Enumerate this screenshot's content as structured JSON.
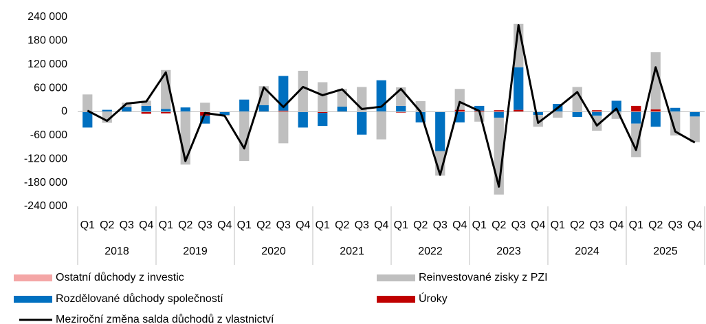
{
  "chart_data": {
    "type": "stacked_bar_line",
    "categories": [
      "Q1",
      "Q2",
      "Q3",
      "Q4",
      "Q1",
      "Q2",
      "Q3",
      "Q4",
      "Q1",
      "Q2",
      "Q3",
      "Q4",
      "Q1",
      "Q2",
      "Q3",
      "Q4",
      "Q1",
      "Q2",
      "Q3",
      "Q4",
      "Q1",
      "Q2",
      "Q3",
      "Q4",
      "Q1",
      "Q2",
      "Q3",
      "Q4",
      "Q1",
      "Q2",
      "Q3",
      "Q4"
    ],
    "groups": [
      "2018",
      "2019",
      "2020",
      "2021",
      "2022",
      "2023",
      "2024",
      "2025"
    ],
    "ylim": [
      -240000,
      240000
    ],
    "yticks": [
      {
        "value": -240000,
        "label": "-240 000"
      },
      {
        "value": -180000,
        "label": "-180 000"
      },
      {
        "value": -120000,
        "label": "-120 000"
      },
      {
        "value": -60000,
        "label": "-60 000"
      },
      0,
      {
        "value": 60000,
        "label": "60 000"
      },
      {
        "value": 120000,
        "label": "120 000"
      },
      {
        "value": 180000,
        "label": "180 000"
      },
      {
        "value": 240000,
        "label": "240 000"
      }
    ],
    "series": [
      {
        "name": "Ostatní důchody z investic",
        "color": "#f4a6a6",
        "kind": "bar",
        "values": [
          0,
          0,
          0,
          0,
          0,
          0,
          0,
          0,
          0,
          0,
          0,
          0,
          0,
          0,
          0,
          0,
          0,
          0,
          0,
          0,
          0,
          0,
          0,
          0,
          0,
          0,
          0,
          0,
          0,
          0,
          0,
          0
        ]
      },
      {
        "name": "Reinvestované zisky z PZI",
        "color": "#bfbfbf",
        "kind": "bar",
        "values": [
          44000,
          -28000,
          11000,
          13000,
          99000,
          -134000,
          23000,
          -3000,
          -125000,
          48000,
          -80000,
          104000,
          75000,
          45000,
          63000,
          -70000,
          47000,
          27000,
          -62000,
          53000,
          -25000,
          -195000,
          110000,
          -30000,
          -15000,
          63000,
          -38000,
          -18000,
          -85000,
          145000,
          -60000,
          -65000
        ]
      },
      {
        "name": "Rozdělované důchody společností",
        "color": "#0070c0",
        "kind": "bar",
        "values": [
          -40000,
          5000,
          12000,
          15000,
          7000,
          11000,
          -20000,
          -8000,
          31000,
          17000,
          88000,
          -40000,
          -33000,
          13000,
          -58000,
          80000,
          15000,
          -27000,
          -100000,
          -27000,
          12000,
          -15000,
          108000,
          -8000,
          20000,
          -13000,
          -10000,
          28000,
          -30000,
          -38000,
          10000,
          -12000
        ]
      },
      {
        "name": "Úroky",
        "color": "#c00000",
        "kind": "bar",
        "values": [
          0,
          0,
          0,
          -5000,
          -4000,
          0,
          -10000,
          0,
          0,
          0,
          3000,
          0,
          -3000,
          0,
          0,
          0,
          -2000,
          0,
          0,
          5000,
          3000,
          4000,
          5000,
          0,
          0,
          0,
          4000,
          0,
          15000,
          6000,
          0,
          0
        ]
      },
      {
        "name": "Meziroční změna salda důchodů z vlastnictví",
        "color": "#000000",
        "kind": "line",
        "values": [
          3000,
          -23000,
          21000,
          26000,
          100000,
          -125000,
          -3000,
          -10000,
          -93000,
          62000,
          12000,
          63000,
          42000,
          57000,
          7000,
          13000,
          58000,
          0,
          -160000,
          25000,
          2000,
          -190000,
          220000,
          -28000,
          10000,
          50000,
          -35000,
          8000,
          -97000,
          113000,
          -50000,
          -78000
        ]
      }
    ]
  }
}
